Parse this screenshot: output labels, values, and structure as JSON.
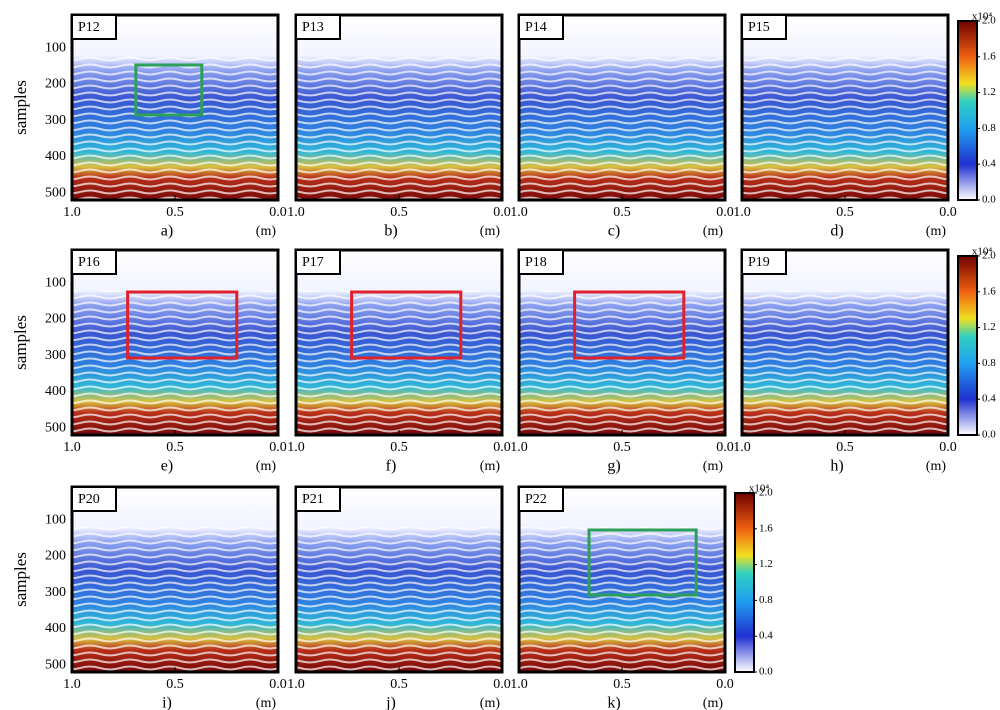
{
  "y_label": "samples",
  "yticks": [
    100,
    200,
    300,
    400,
    500
  ],
  "xticks": [
    {
      "value": 1,
      "label": "1.0"
    },
    0.5,
    {
      "value": 0,
      "label": "0.0"
    }
  ],
  "x_unit": "(m)",
  "colorbar": {
    "exponent_label": "x10⁴",
    "ticks": [
      {
        "value": 0,
        "label": "0.0"
      },
      0.4,
      0.8,
      1.2,
      1.6,
      {
        "value": 2,
        "label": "2.0"
      }
    ]
  },
  "rows": [
    {
      "panels": [
        {
          "label": "P12",
          "caption": "a)",
          "box_color": "#2ca05a"
        },
        {
          "label": "P13",
          "caption": "b)"
        },
        {
          "label": "P14",
          "caption": "c)"
        },
        {
          "label": "P15",
          "caption": "d)"
        }
      ]
    },
    {
      "panels": [
        {
          "label": "P16",
          "caption": "e)",
          "box_color": "#e0202a"
        },
        {
          "label": "P17",
          "caption": "f)",
          "box_color": "#e0202a"
        },
        {
          "label": "P18",
          "caption": "g)",
          "box_color": "#e0202a"
        },
        {
          "label": "P19",
          "caption": "h)"
        }
      ]
    },
    {
      "panels": [
        {
          "label": "P20",
          "caption": "i)"
        },
        {
          "label": "P21",
          "caption": "j)"
        },
        {
          "label": "P22",
          "caption": "k)",
          "box_color": "#2ca05a"
        }
      ]
    }
  ]
}
